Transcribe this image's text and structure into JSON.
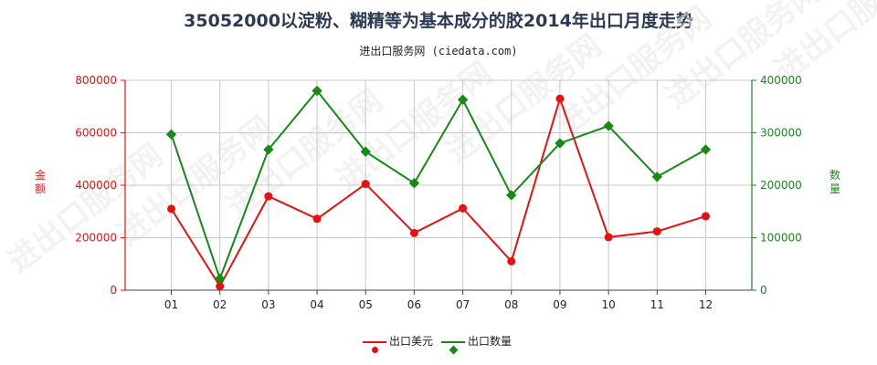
{
  "title": "35052000以淀粉、糊精等为基本成分的胶2014年出口月度走势",
  "subtitle": "进出口服务网 (ciedata.com)",
  "watermark_text": "进出口服务网",
  "colors": {
    "amount": "#e81010",
    "quantity": "#158a15",
    "title": "#2b3a55"
  },
  "chart_data": {
    "type": "line",
    "title": "35052000以淀粉、糊精等为基本成分的胶2014年出口月度走势",
    "categories": [
      "01",
      "02",
      "03",
      "04",
      "05",
      "06",
      "07",
      "08",
      "09",
      "10",
      "11",
      "12"
    ],
    "y_left": {
      "label": "金额",
      "ylim": [
        0,
        800000
      ],
      "ticks": [
        "0",
        "200000",
        "400000",
        "600000",
        "800000"
      ]
    },
    "y_right": {
      "label": "数量",
      "ylim": [
        0,
        400000
      ],
      "ticks": [
        "0",
        "100000",
        "200000",
        "300000",
        "400000"
      ]
    },
    "grid": true,
    "legend_position": "bottom",
    "series": [
      {
        "name": "出口美元",
        "axis": "left",
        "color": "#e81010",
        "values": [
          310000,
          15000,
          358000,
          272000,
          405000,
          218000,
          312000,
          110000,
          730000,
          202000,
          224000,
          282000
        ]
      },
      {
        "name": "出口数量",
        "axis": "right",
        "color": "#158a15",
        "values": [
          297000,
          22000,
          268000,
          380000,
          264000,
          204000,
          363000,
          181000,
          280000,
          313000,
          216000,
          268000
        ]
      }
    ]
  }
}
